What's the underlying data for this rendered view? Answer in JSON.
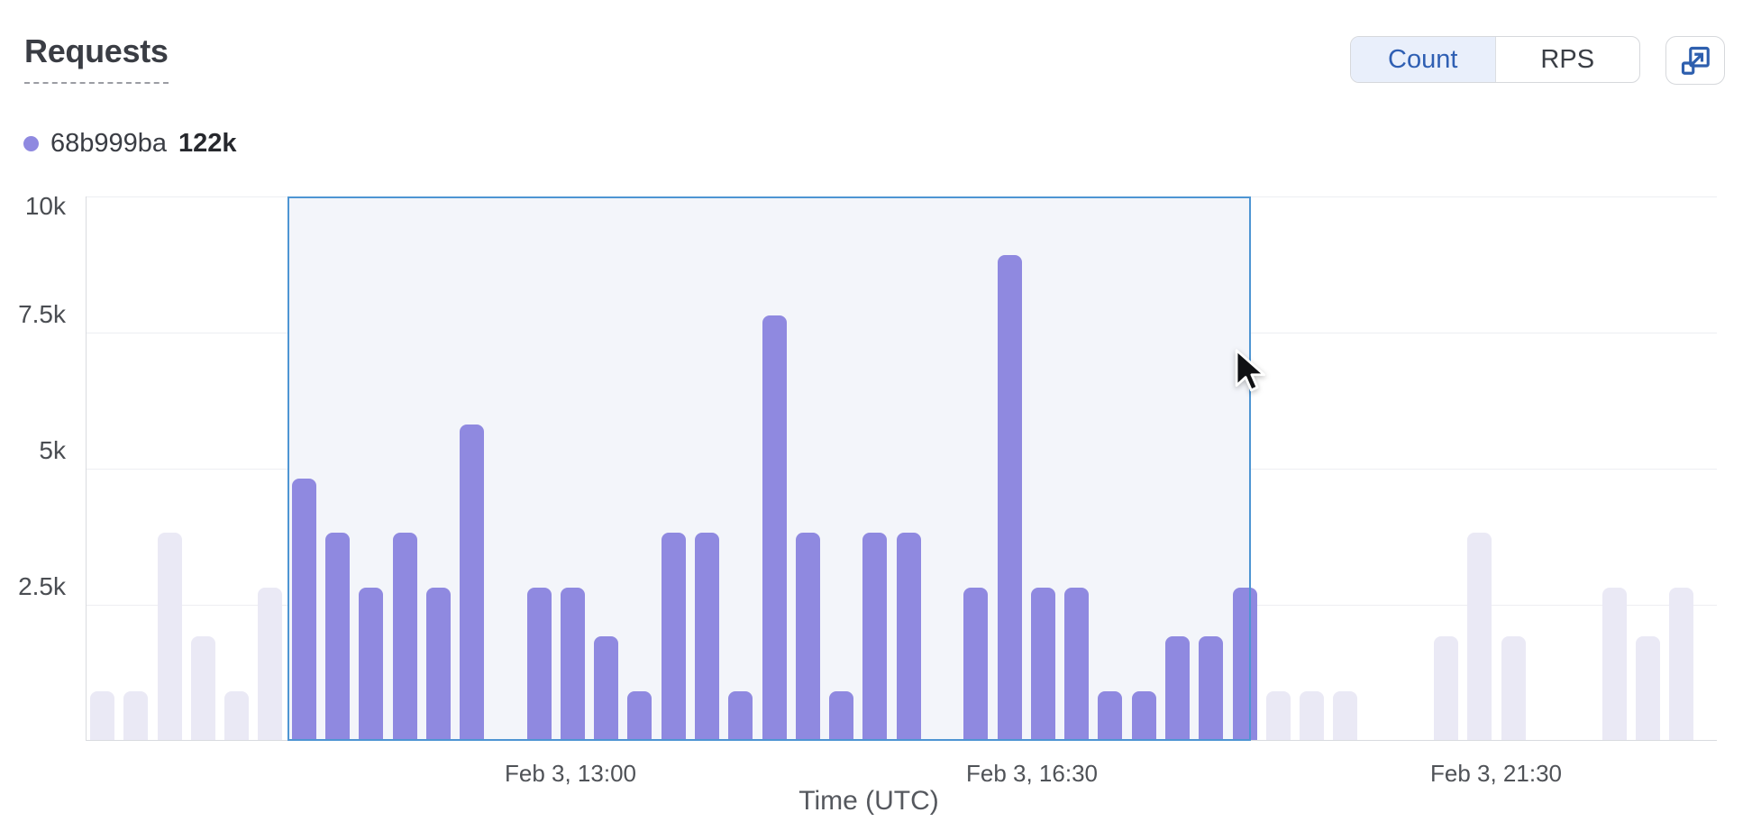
{
  "header": {
    "title": "Requests",
    "toggle": {
      "options": [
        "Count",
        "RPS"
      ],
      "selected": "Count"
    }
  },
  "legend": {
    "series": "68b999ba",
    "value": "122k",
    "dot_color": "#8f89e0"
  },
  "chart_data": {
    "type": "bar",
    "title": "Requests",
    "xlabel": "Time (UTC)",
    "ylabel": "",
    "ylim": [
      0,
      10000
    ],
    "grid": true,
    "legend_position": "top-left",
    "yticks": [
      {
        "label": "10k",
        "value": 10000
      },
      {
        "label": "7.5k",
        "value": 7500
      },
      {
        "label": "5k",
        "value": 5000
      },
      {
        "label": "2.5k",
        "value": 2500
      }
    ],
    "xticks": [
      {
        "label": "Feb 3, 13:00",
        "slot": 14
      },
      {
        "label": "Feb 3, 16:30",
        "slot": 28
      },
      {
        "label": "Feb 3, 21:30",
        "slot": 42
      }
    ],
    "series": [
      {
        "name": "68b999ba",
        "total_label": "122k",
        "values": [
          900,
          900,
          3800,
          1900,
          900,
          2800,
          4800,
          3800,
          2800,
          3800,
          2800,
          5800,
          0,
          2800,
          2800,
          1900,
          900,
          3800,
          3800,
          900,
          7800,
          3800,
          900,
          3800,
          3800,
          0,
          2800,
          8900,
          2800,
          2800,
          900,
          900,
          1900,
          1900,
          2800,
          900,
          900,
          900,
          0,
          0,
          1900,
          3800,
          1900,
          0,
          0,
          2800,
          1900,
          2800
        ]
      }
    ],
    "selection": {
      "start_slot": 6,
      "end_slot": 34,
      "border_color": "#4e95d3",
      "fill_color": "#f3f5fa"
    },
    "colors": {
      "bar_selected": "#8f89e0",
      "bar_unselected": "#eae9f5",
      "accent_blue": "#2f5fb3"
    }
  },
  "cursor": {
    "visible": true
  }
}
